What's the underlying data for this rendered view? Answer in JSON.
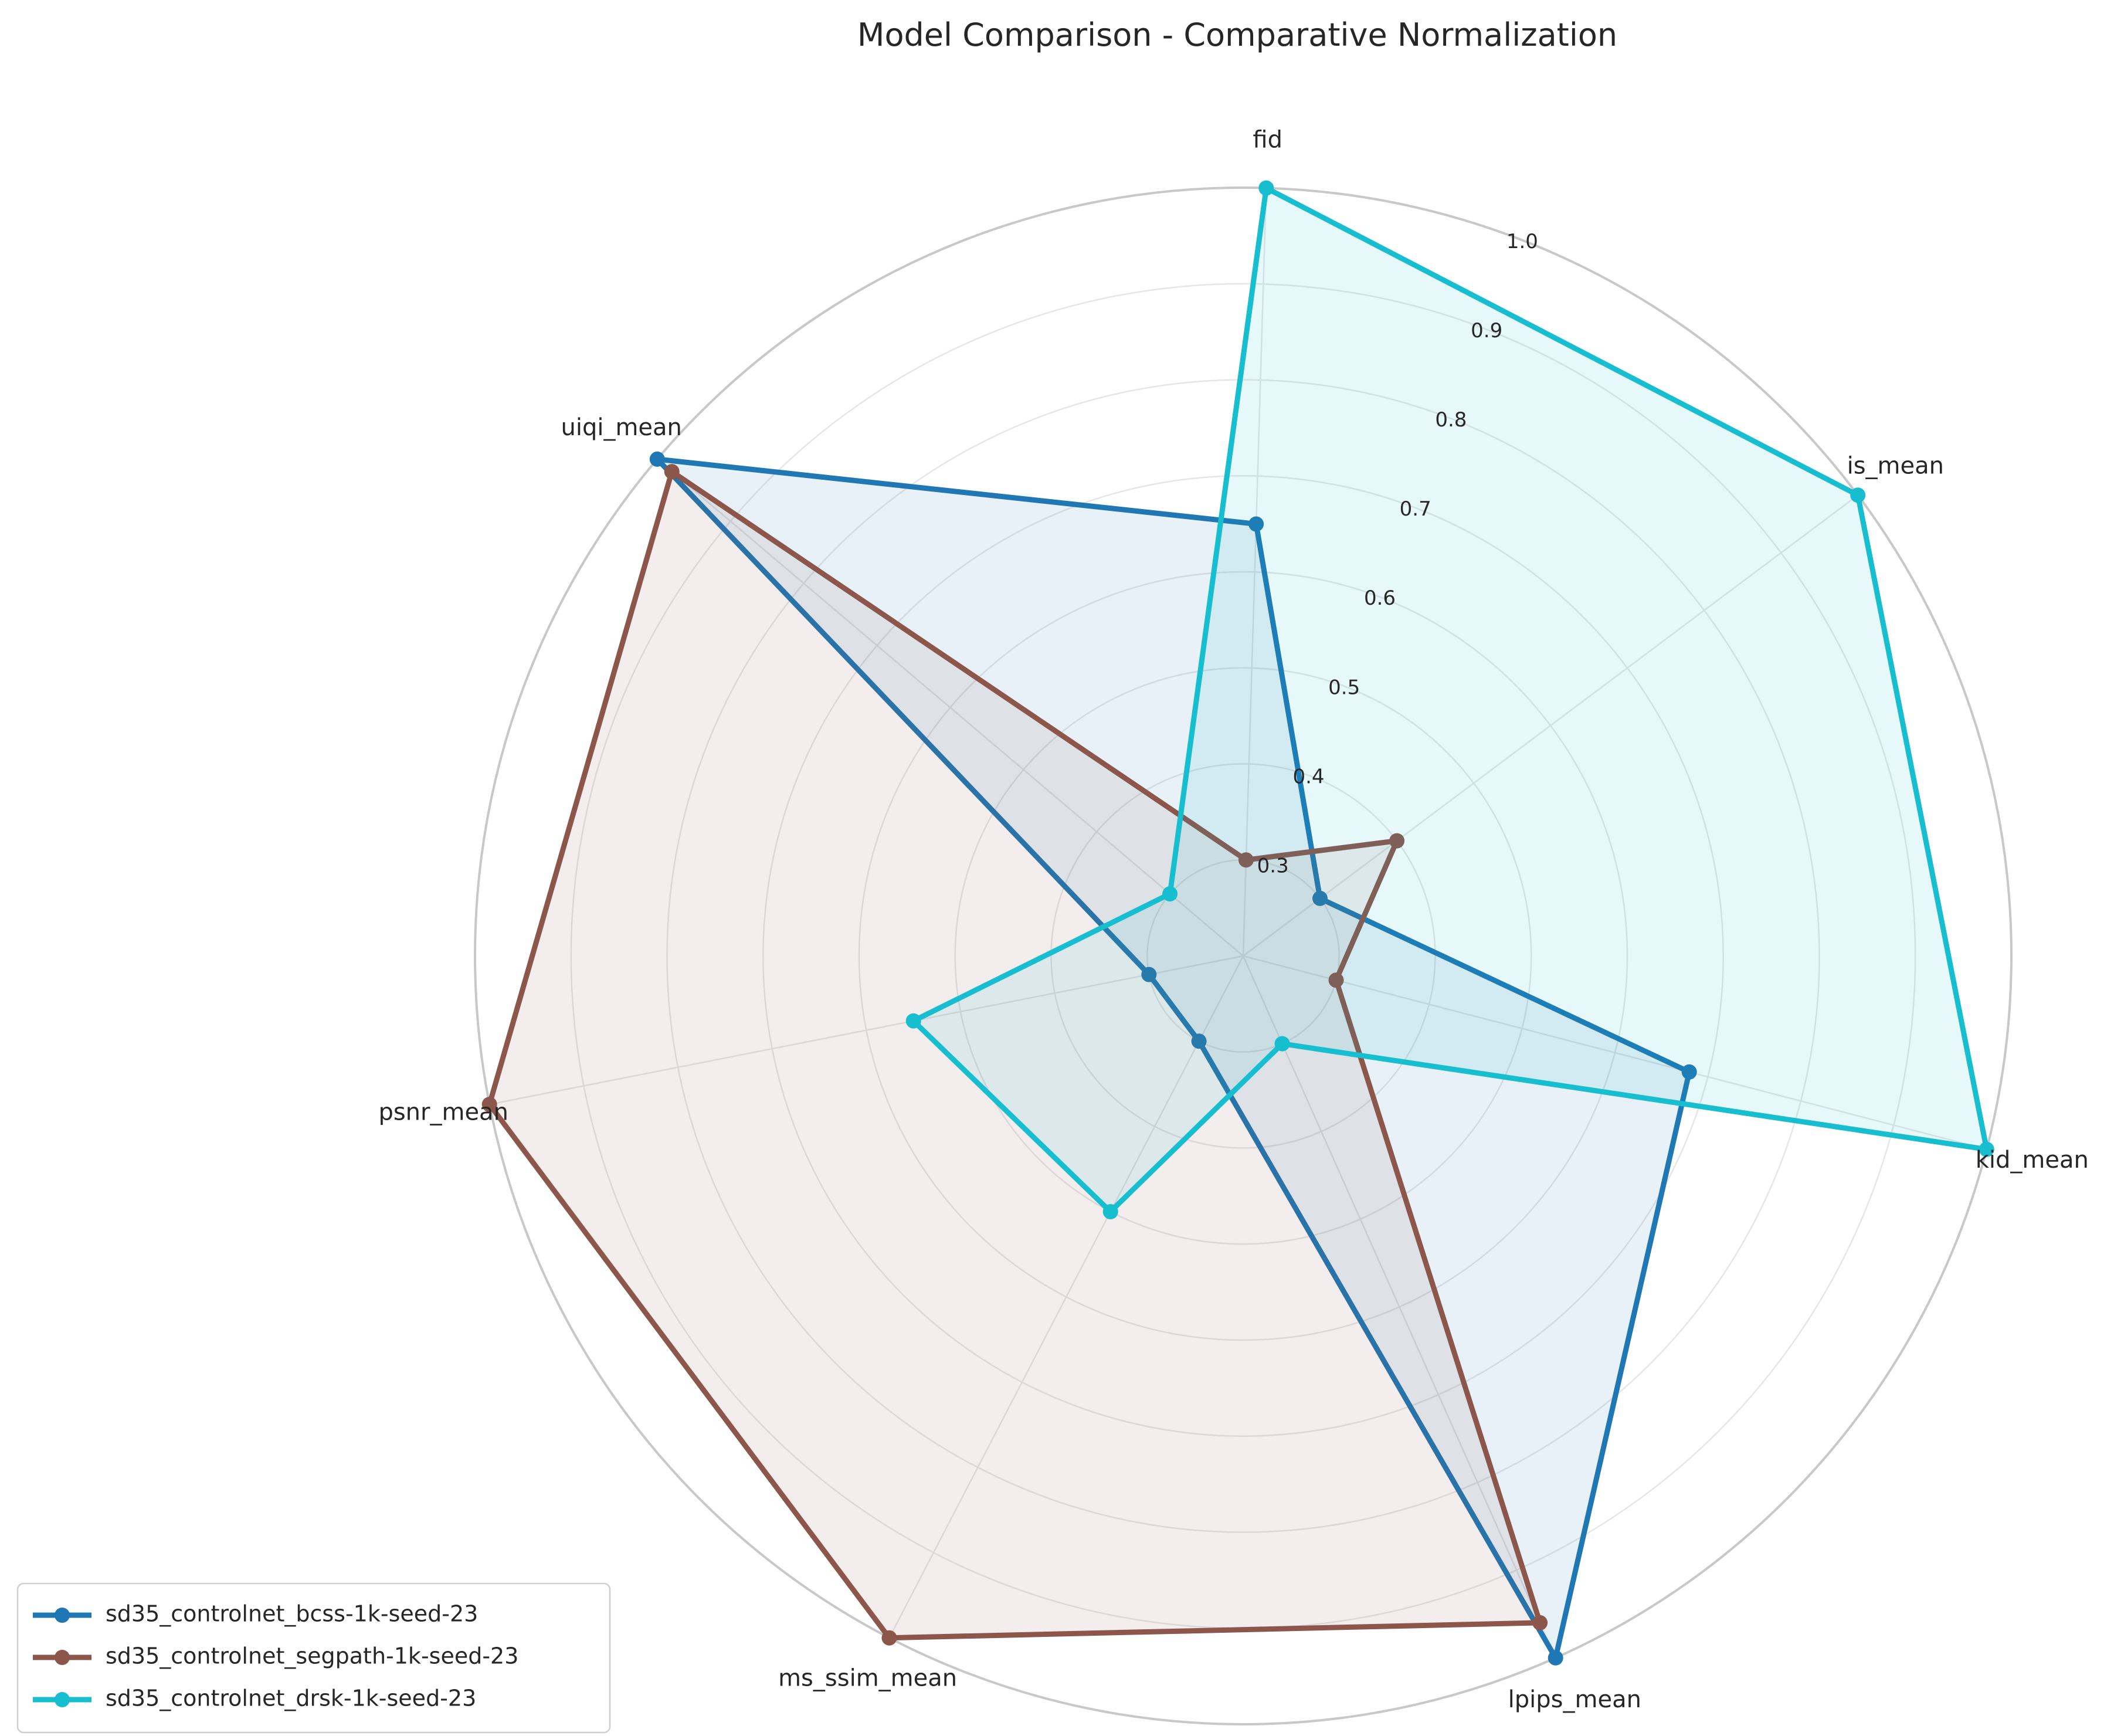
{
  "chart_data": {
    "type": "radar",
    "title": "Model Comparison - Comparative Normalization",
    "axes": [
      "fid",
      "is_mean",
      "kid_mean",
      "lpips_mean",
      "ms_ssim_mean",
      "psnr_mean",
      "uiqi_mean"
    ],
    "rlim": [
      0.2,
      1.0
    ],
    "rticks": [
      "0.3",
      "0.4",
      "0.5",
      "0.6",
      "0.7",
      "0.8",
      "0.9",
      "1.0"
    ],
    "grid": true,
    "legend_position": "lower-left",
    "series": [
      {
        "name": "sd35_controlnet_bcss-1k-seed-23",
        "color": "#1f77b4",
        "values": [
          0.65,
          0.3,
          0.68,
          1.0,
          0.3,
          0.3,
          1.0
        ]
      },
      {
        "name": "sd35_controlnet_segpath-1k-seed-23",
        "color": "#8c564b",
        "values": [
          0.3,
          0.4,
          0.3,
          0.96,
          1.0,
          1.0,
          0.98
        ]
      },
      {
        "name": "sd35_controlnet_drsk-1k-seed-23",
        "color": "#17becf",
        "values": [
          1.0,
          1.0,
          1.0,
          0.3,
          0.5,
          0.55,
          0.3
        ]
      }
    ]
  }
}
